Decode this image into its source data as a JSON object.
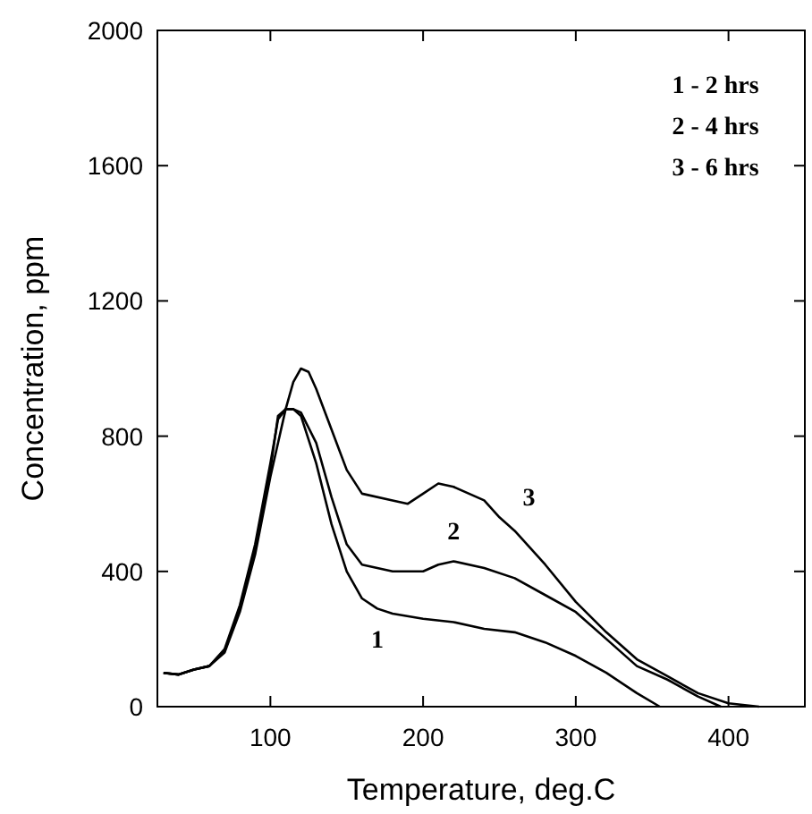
{
  "chart_data": {
    "type": "line",
    "xlabel": "Temperature, deg.C",
    "ylabel": "Concentration, ppm",
    "xlim": [
      26,
      450
    ],
    "ylim": [
      0,
      2000
    ],
    "xticks": [
      100,
      200,
      300,
      400
    ],
    "yticks": [
      0,
      400,
      800,
      1200,
      1600,
      2000
    ],
    "grid": false,
    "marker": "none",
    "line_style": "solid",
    "annotations": [
      "1 - 2 hrs",
      "2 - 4 hrs",
      "3 - 6 hrs"
    ],
    "series": [
      {
        "name": "1",
        "color": "#000000",
        "x": [
          30,
          40,
          50,
          60,
          70,
          80,
          90,
          100,
          105,
          110,
          115,
          120,
          130,
          140,
          150,
          160,
          170,
          180,
          200,
          220,
          240,
          260,
          280,
          300,
          320,
          340,
          355
        ],
        "values": [
          100,
          95,
          110,
          120,
          170,
          300,
          480,
          720,
          850,
          880,
          880,
          860,
          720,
          540,
          400,
          320,
          290,
          275,
          260,
          250,
          230,
          220,
          190,
          150,
          100,
          40,
          0
        ]
      },
      {
        "name": "2",
        "color": "#000000",
        "x": [
          30,
          40,
          50,
          60,
          70,
          80,
          90,
          100,
          105,
          110,
          115,
          120,
          130,
          140,
          150,
          160,
          180,
          200,
          210,
          220,
          240,
          260,
          280,
          300,
          320,
          340,
          360,
          380,
          395
        ],
        "values": [
          100,
          95,
          110,
          120,
          165,
          290,
          470,
          700,
          860,
          880,
          880,
          870,
          780,
          620,
          480,
          420,
          400,
          400,
          420,
          430,
          410,
          380,
          330,
          280,
          200,
          120,
          80,
          30,
          0
        ]
      },
      {
        "name": "3",
        "color": "#000000",
        "x": [
          30,
          40,
          50,
          60,
          70,
          80,
          90,
          100,
          110,
          115,
          120,
          125,
          130,
          140,
          150,
          160,
          180,
          190,
          200,
          210,
          220,
          240,
          250,
          260,
          280,
          300,
          320,
          340,
          360,
          380,
          400,
          420
        ],
        "values": [
          100,
          95,
          110,
          120,
          160,
          280,
          450,
          680,
          880,
          960,
          1000,
          990,
          940,
          820,
          700,
          630,
          610,
          600,
          630,
          660,
          650,
          610,
          560,
          520,
          420,
          310,
          220,
          140,
          90,
          40,
          10,
          0
        ]
      }
    ]
  }
}
